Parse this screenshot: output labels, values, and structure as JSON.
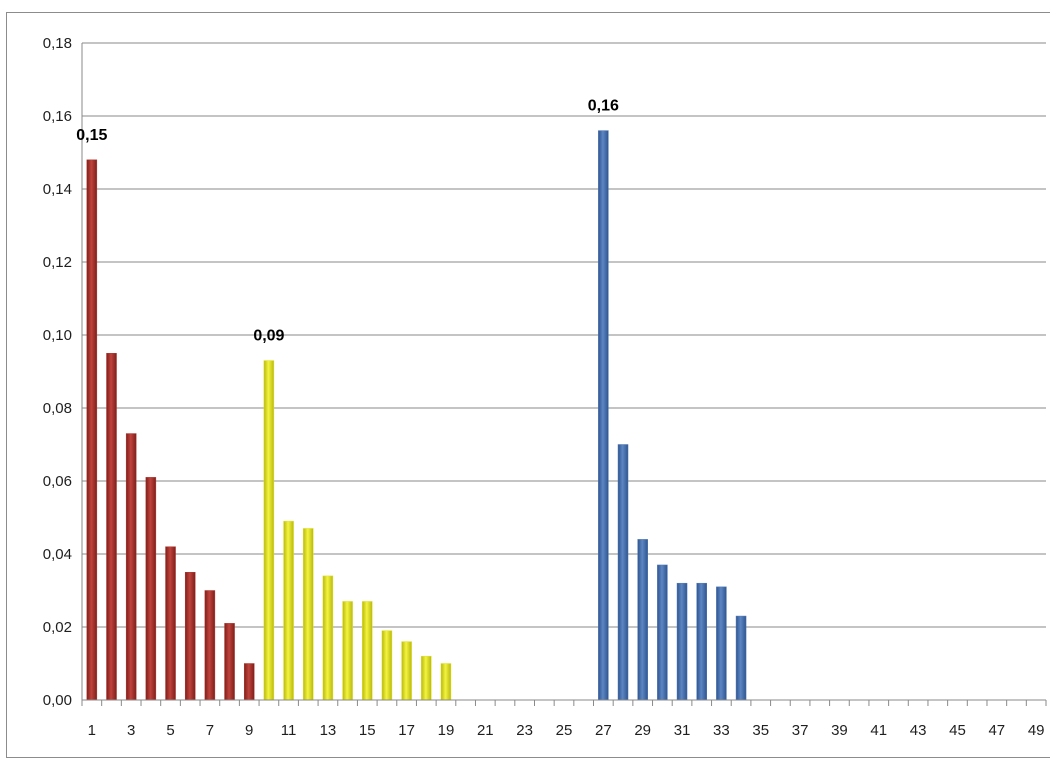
{
  "chart_data": {
    "type": "bar",
    "title": "",
    "xlabel": "",
    "ylabel": "",
    "ylim": [
      0,
      0.18
    ],
    "yticks": [
      "0,00",
      "0,02",
      "0,04",
      "0,06",
      "0,08",
      "0,10",
      "0,12",
      "0,14",
      "0,16",
      "0,18"
    ],
    "xcategories": [
      1,
      2,
      3,
      4,
      5,
      6,
      7,
      8,
      9,
      10,
      11,
      12,
      13,
      14,
      15,
      16,
      17,
      18,
      19,
      20,
      21,
      22,
      23,
      24,
      25,
      26,
      27,
      28,
      29,
      30,
      31,
      32,
      33,
      34,
      35,
      36,
      37,
      38,
      39,
      40,
      41,
      42,
      43,
      44,
      45,
      46,
      47,
      48,
      49
    ],
    "xtick_labels": [
      "1",
      "3",
      "5",
      "7",
      "9",
      "11",
      "13",
      "15",
      "17",
      "19",
      "21",
      "23",
      "25",
      "27",
      "29",
      "31",
      "33",
      "35",
      "37",
      "39",
      "41",
      "43",
      "45",
      "47",
      "49"
    ],
    "grid": true,
    "legend": "none",
    "series": [
      {
        "color": "#b03a34",
        "x": [
          1,
          2,
          3,
          4,
          5,
          6,
          7,
          8,
          9
        ],
        "values": [
          0.148,
          0.095,
          0.073,
          0.061,
          0.042,
          0.035,
          0.03,
          0.021,
          0.01
        ]
      },
      {
        "color": "#e2e22c",
        "x": [
          10,
          11,
          12,
          13,
          14,
          15,
          16,
          17,
          18,
          19
        ],
        "values": [
          0.093,
          0.049,
          0.047,
          0.034,
          0.027,
          0.027,
          0.019,
          0.016,
          0.012,
          0.01
        ]
      },
      {
        "color": "#4f78b4",
        "x": [
          27,
          28,
          29,
          30,
          31,
          32,
          33,
          34
        ],
        "values": [
          0.156,
          0.07,
          0.044,
          0.037,
          0.032,
          0.032,
          0.031,
          0.023
        ]
      }
    ],
    "data_labels": [
      {
        "x": 1,
        "text": "0,15"
      },
      {
        "x": 10,
        "text": "0,09"
      },
      {
        "x": 27,
        "text": "0,16"
      }
    ]
  }
}
